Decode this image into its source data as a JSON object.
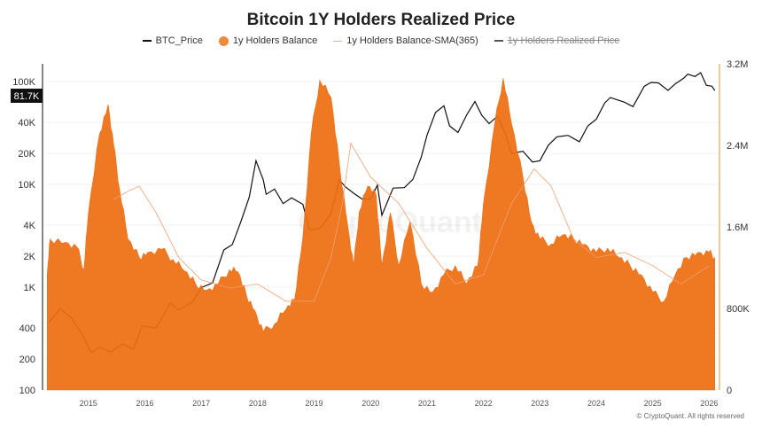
{
  "chart_data": {
    "type": "line",
    "title": "Bitcoin 1Y Holders Realized Price",
    "legend": {
      "placement": "top",
      "items": [
        {
          "label": "BTC_Price",
          "color": "#111111",
          "visible": true
        },
        {
          "label": "1y Holders Balance",
          "color": "#F0731A",
          "visible": true
        },
        {
          "label": "1y Holders Balance-SMA(365)",
          "color": "#F4B08A",
          "visible": true
        },
        {
          "label": "1y Holders Realized Price",
          "color": "#555555",
          "visible": false
        }
      ]
    },
    "x_axis": {
      "ticks": [
        "2015",
        "2016",
        "2017",
        "2018",
        "2019",
        "2020",
        "2021",
        "2022",
        "2023",
        "2024",
        "2025",
        "2026"
      ],
      "range": [
        2014.25,
        2026.12
      ]
    },
    "y_left": {
      "scale": "log",
      "ticks": [
        "100",
        "200",
        "400",
        "1K",
        "2K",
        "4K",
        "10K",
        "20K",
        "40K",
        "100K"
      ],
      "range": [
        100,
        200000
      ],
      "current_value_label": "81.7K"
    },
    "y_right": {
      "scale": "linear",
      "ticks": [
        "0",
        "800K",
        "1.6M",
        "2.4M",
        "3.2M"
      ],
      "range": [
        0,
        3200000
      ]
    },
    "grid": true,
    "watermark": "CryptoQuant",
    "series": [
      {
        "name": "BTC_Price",
        "axis": "left",
        "points": [
          [
            2014.3,
            450
          ],
          [
            2014.5,
            620
          ],
          [
            2014.7,
            500
          ],
          [
            2014.9,
            340
          ],
          [
            2015.05,
            230
          ],
          [
            2015.2,
            260
          ],
          [
            2015.4,
            235
          ],
          [
            2015.6,
            280
          ],
          [
            2015.8,
            250
          ],
          [
            2015.95,
            420
          ],
          [
            2016.2,
            400
          ],
          [
            2016.45,
            700
          ],
          [
            2016.6,
            600
          ],
          [
            2016.85,
            720
          ],
          [
            2017.0,
            990
          ],
          [
            2017.2,
            1100
          ],
          [
            2017.4,
            2300
          ],
          [
            2017.55,
            2600
          ],
          [
            2017.7,
            4300
          ],
          [
            2017.85,
            7500
          ],
          [
            2017.97,
            17000
          ],
          [
            2018.1,
            11000
          ],
          [
            2018.15,
            8000
          ],
          [
            2018.3,
            9000
          ],
          [
            2018.45,
            6500
          ],
          [
            2018.6,
            7400
          ],
          [
            2018.8,
            6400
          ],
          [
            2018.92,
            3600
          ],
          [
            2019.1,
            3700
          ],
          [
            2019.3,
            5200
          ],
          [
            2019.45,
            11000
          ],
          [
            2019.55,
            9500
          ],
          [
            2019.7,
            8200
          ],
          [
            2019.85,
            7200
          ],
          [
            2020.0,
            7200
          ],
          [
            2020.12,
            9800
          ],
          [
            2020.2,
            5000
          ],
          [
            2020.4,
            9200
          ],
          [
            2020.6,
            9300
          ],
          [
            2020.75,
            11200
          ],
          [
            2020.9,
            18500
          ],
          [
            2021.0,
            30000
          ],
          [
            2021.15,
            50000
          ],
          [
            2021.3,
            58000
          ],
          [
            2021.4,
            37000
          ],
          [
            2021.55,
            32000
          ],
          [
            2021.7,
            47000
          ],
          [
            2021.85,
            64000
          ],
          [
            2021.97,
            47000
          ],
          [
            2022.1,
            39000
          ],
          [
            2022.25,
            46000
          ],
          [
            2022.4,
            30000
          ],
          [
            2022.5,
            20000
          ],
          [
            2022.7,
            21000
          ],
          [
            2022.87,
            16500
          ],
          [
            2023.0,
            17000
          ],
          [
            2023.15,
            24000
          ],
          [
            2023.3,
            29000
          ],
          [
            2023.5,
            30000
          ],
          [
            2023.7,
            26000
          ],
          [
            2023.85,
            37000
          ],
          [
            2024.0,
            43000
          ],
          [
            2024.15,
            62000
          ],
          [
            2024.25,
            70000
          ],
          [
            2024.5,
            63000
          ],
          [
            2024.65,
            57000
          ],
          [
            2024.85,
            90000
          ],
          [
            2024.97,
            98000
          ],
          [
            2025.1,
            97000
          ],
          [
            2025.27,
            82000
          ],
          [
            2025.4,
            95000
          ],
          [
            2025.55,
            108000
          ],
          [
            2025.62,
            118000
          ],
          [
            2025.75,
            112000
          ],
          [
            2025.85,
            122000
          ],
          [
            2025.95,
            92000
          ],
          [
            2026.05,
            90000
          ],
          [
            2026.1,
            81700
          ]
        ]
      },
      {
        "name": "1y Holders Balance",
        "axis": "right",
        "points": [
          [
            2014.27,
            1130000
          ],
          [
            2014.32,
            1480000
          ],
          [
            2014.6,
            1450000
          ],
          [
            2014.8,
            1400000
          ],
          [
            2014.92,
            1180000
          ],
          [
            2015.0,
            1740000
          ],
          [
            2015.2,
            2520000
          ],
          [
            2015.35,
            2800000
          ],
          [
            2015.45,
            2400000
          ],
          [
            2015.55,
            1980000
          ],
          [
            2015.7,
            1480000
          ],
          [
            2015.9,
            1300000
          ],
          [
            2016.05,
            1350000
          ],
          [
            2016.3,
            1380000
          ],
          [
            2016.5,
            1280000
          ],
          [
            2016.7,
            1170000
          ],
          [
            2016.9,
            1040000
          ],
          [
            2017.1,
            980000
          ],
          [
            2017.3,
            1040000
          ],
          [
            2017.5,
            1180000
          ],
          [
            2017.65,
            1160000
          ],
          [
            2017.8,
            930000
          ],
          [
            2017.95,
            780000
          ],
          [
            2018.1,
            570000
          ],
          [
            2018.3,
            650000
          ],
          [
            2018.5,
            790000
          ],
          [
            2018.65,
            880000
          ],
          [
            2018.8,
            1500000
          ],
          [
            2018.95,
            2520000
          ],
          [
            2019.1,
            3040000
          ],
          [
            2019.3,
            2870000
          ],
          [
            2019.45,
            2200000
          ],
          [
            2019.6,
            1600000
          ],
          [
            2019.7,
            1220000
          ],
          [
            2019.8,
            1750000
          ],
          [
            2019.95,
            2000000
          ],
          [
            2020.1,
            1910000
          ],
          [
            2020.2,
            1220000
          ],
          [
            2020.35,
            1740000
          ],
          [
            2020.5,
            1220000
          ],
          [
            2020.7,
            1650000
          ],
          [
            2020.9,
            1040000
          ],
          [
            2021.1,
            960000
          ],
          [
            2021.3,
            1130000
          ],
          [
            2021.5,
            1220000
          ],
          [
            2021.7,
            1040000
          ],
          [
            2021.9,
            1220000
          ],
          [
            2022.0,
            1830000
          ],
          [
            2022.2,
            2610000
          ],
          [
            2022.35,
            3060000
          ],
          [
            2022.5,
            2610000
          ],
          [
            2022.7,
            2090000
          ],
          [
            2022.85,
            1650000
          ],
          [
            2023.0,
            1480000
          ],
          [
            2023.2,
            1430000
          ],
          [
            2023.4,
            1520000
          ],
          [
            2023.6,
            1480000
          ],
          [
            2023.8,
            1430000
          ],
          [
            2024.0,
            1350000
          ],
          [
            2024.2,
            1390000
          ],
          [
            2024.4,
            1300000
          ],
          [
            2024.6,
            1220000
          ],
          [
            2024.8,
            1130000
          ],
          [
            2025.0,
            960000
          ],
          [
            2025.2,
            870000
          ],
          [
            2025.4,
            1130000
          ],
          [
            2025.6,
            1300000
          ],
          [
            2025.8,
            1350000
          ],
          [
            2026.0,
            1350000
          ],
          [
            2026.1,
            1300000
          ]
        ]
      },
      {
        "name": "1y Holders Balance-SMA(365)",
        "axis": "right",
        "points": [
          [
            2015.45,
            1870000
          ],
          [
            2015.7,
            1950000
          ],
          [
            2015.9,
            2000000
          ],
          [
            2016.2,
            1740000
          ],
          [
            2016.6,
            1300000
          ],
          [
            2017.0,
            1080000
          ],
          [
            2017.5,
            1000000
          ],
          [
            2018.0,
            1040000
          ],
          [
            2018.5,
            870000
          ],
          [
            2019.0,
            870000
          ],
          [
            2019.3,
            1300000
          ],
          [
            2019.5,
            1830000
          ],
          [
            2019.65,
            2420000
          ],
          [
            2020.0,
            2090000
          ],
          [
            2020.5,
            1830000
          ],
          [
            2021.0,
            1390000
          ],
          [
            2021.5,
            1040000
          ],
          [
            2022.0,
            1130000
          ],
          [
            2022.5,
            1830000
          ],
          [
            2022.9,
            2170000
          ],
          [
            2023.2,
            2000000
          ],
          [
            2023.6,
            1480000
          ],
          [
            2024.0,
            1300000
          ],
          [
            2024.5,
            1350000
          ],
          [
            2025.0,
            1220000
          ],
          [
            2025.5,
            1040000
          ],
          [
            2026.0,
            1220000
          ]
        ]
      }
    ]
  },
  "footer": {
    "copyright": "© CryptoQuant. All rights reserved"
  }
}
